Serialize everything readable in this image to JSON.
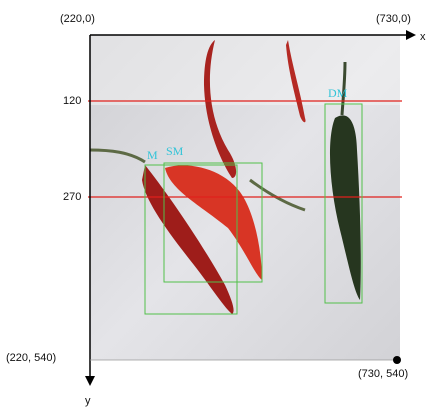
{
  "corners": {
    "top_left": "(220,0)",
    "top_right": "(730,0)",
    "bottom_left": "(220, 540)",
    "bottom_right": "(730, 540)"
  },
  "axes": {
    "x": "x",
    "y": "y"
  },
  "lines": [
    {
      "label": "120"
    },
    {
      "label": "270"
    }
  ],
  "boxes": [
    {
      "label": "M"
    },
    {
      "label": "SM"
    },
    {
      "label": "DM"
    }
  ]
}
